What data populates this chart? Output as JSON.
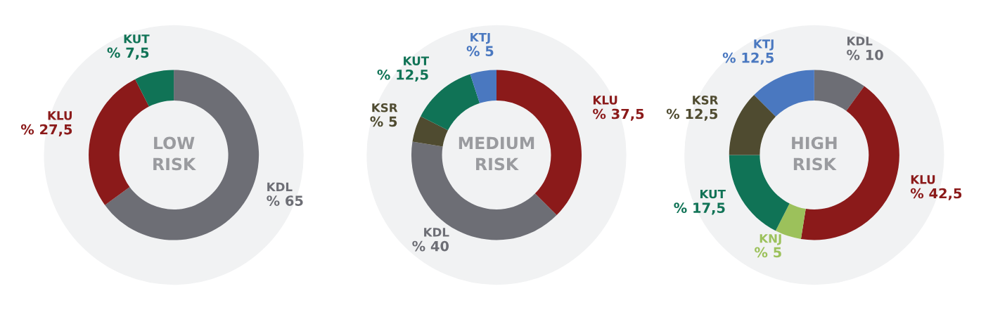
{
  "chart_data": [
    {
      "type": "donut",
      "title": "LOW\nRISK",
      "categories": [
        "KDL",
        "KLU",
        "KUT"
      ],
      "values": [
        65,
        27.5,
        7.5
      ],
      "value_labels": [
        "% 65",
        "% 27,5",
        "% 7,5"
      ],
      "colors": [
        "#6d6e75",
        "#8b1a1a",
        "#107356"
      ],
      "legend": false
    },
    {
      "type": "donut",
      "title": "MEDIUM\nRISK",
      "categories": [
        "KLU",
        "KDL",
        "KSR",
        "KUT",
        "KTJ"
      ],
      "values": [
        37.5,
        40,
        5,
        12.5,
        5
      ],
      "value_labels": [
        "% 37,5",
        "% 40",
        "% 5",
        "% 12,5",
        "% 5"
      ],
      "colors": [
        "#8b1a1a",
        "#6d6e75",
        "#4f4b30",
        "#107356",
        "#4a78c0"
      ],
      "legend": false
    },
    {
      "type": "donut",
      "title": "HIGH\nRISK",
      "categories": [
        "KDL",
        "KLU",
        "KNJ",
        "KUT",
        "KSR",
        "KTJ"
      ],
      "values": [
        10,
        42.5,
        5,
        17.5,
        12.5,
        12.5
      ],
      "value_labels": [
        "% 10",
        "% 42,5",
        "% 5",
        "% 17,5",
        "% 12,5",
        "% 12,5"
      ],
      "colors": [
        "#6d6e75",
        "#8b1a1a",
        "#9cc15b",
        "#107356",
        "#4f4b30",
        "#4a78c0"
      ],
      "legend": false
    }
  ]
}
